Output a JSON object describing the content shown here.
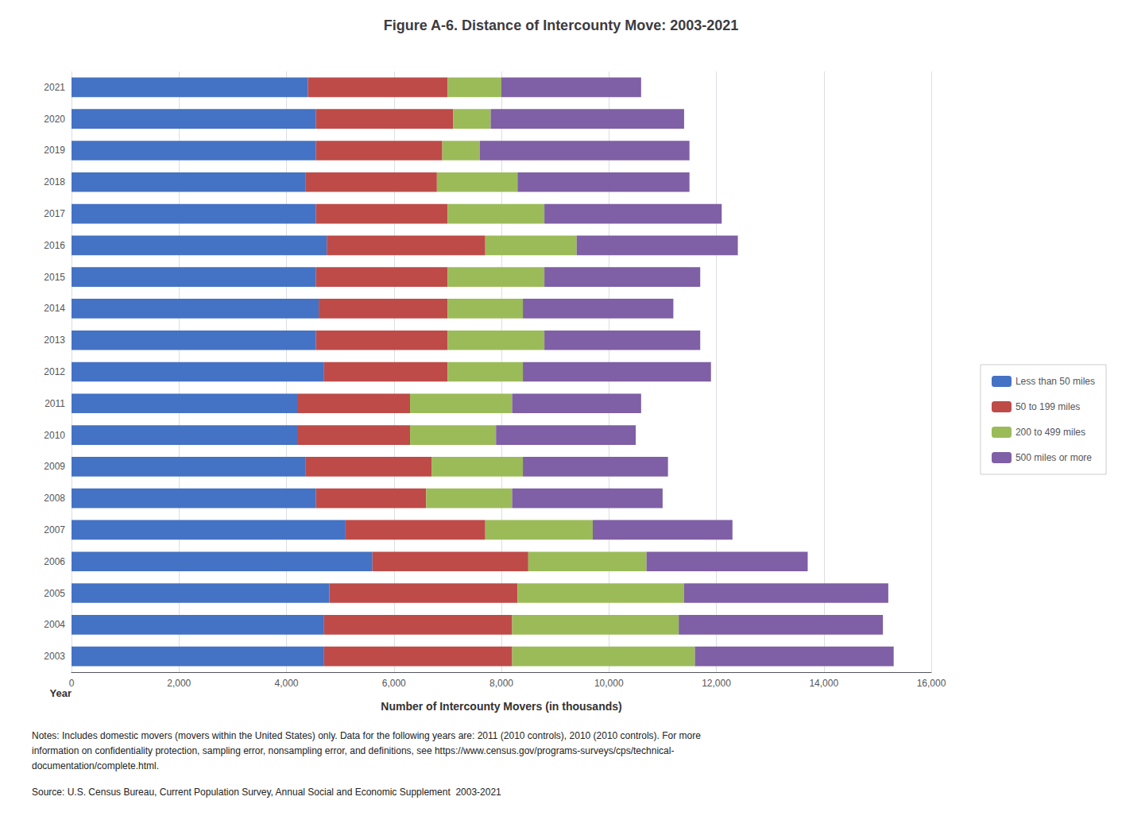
{
  "chart_data": {
    "type": "bar",
    "orientation": "horizontal",
    "stacked": true,
    "title": "Figure A-6. Distance of Intercounty Move: 2003-2021",
    "xlabel": "Number of Intercounty Movers (in thousands)",
    "ylabel": "Year",
    "categories": [
      "2021",
      "2020",
      "2019",
      "2018",
      "2017",
      "2016",
      "2015",
      "2014",
      "2013",
      "2012",
      "2011",
      "2010",
      "2009",
      "2008",
      "2007",
      "2006",
      "2005",
      "2004",
      "2003"
    ],
    "series": [
      {
        "name": "Less than 50 miles",
        "color": "#4472C4",
        "values": [
          4400,
          4550,
          4550,
          4350,
          4550,
          4750,
          4550,
          4600,
          4550,
          4700,
          4200,
          4200,
          4350,
          4550,
          5100,
          5600,
          4800,
          4700,
          4700
        ]
      },
      {
        "name": "50 to 199 miles",
        "color": "#BE4B48",
        "values": [
          2600,
          2550,
          2350,
          2450,
          2450,
          2950,
          2450,
          2400,
          2450,
          2300,
          2100,
          2100,
          2350,
          2050,
          2600,
          2900,
          3500,
          3500,
          3500
        ]
      },
      {
        "name": "200 to 499 miles",
        "color": "#9BBB59",
        "values": [
          1000,
          700,
          700,
          1500,
          1800,
          1700,
          1800,
          1400,
          1800,
          1400,
          1900,
          1600,
          1700,
          1600,
          2000,
          2200,
          3100,
          3100,
          3400
        ]
      },
      {
        "name": "500 miles or more",
        "color": "#7F5FA5",
        "values": [
          2600,
          3600,
          3900,
          3200,
          3300,
          3000,
          2900,
          2800,
          2900,
          3500,
          2400,
          2600,
          2700,
          2800,
          2600,
          3000,
          3800,
          3800,
          3700
        ]
      }
    ],
    "xlim": [
      0,
      16000
    ],
    "xticks": [
      0,
      {
        "value": 2000,
        "label": "2,000"
      },
      {
        "value": 4000,
        "label": "4,000"
      },
      {
        "value": 6000,
        "label": "6,000"
      },
      {
        "value": 8000,
        "label": "8,000"
      },
      {
        "value": 10000,
        "label": "10,000"
      },
      {
        "value": 12000,
        "label": "12,000"
      },
      {
        "value": 14000,
        "label": "14,000"
      },
      {
        "value": 16000,
        "label": "16,000"
      }
    ],
    "grid": true,
    "legend": "right",
    "annotations": [
      "Notes: Includes domestic movers (movers within the United States) only. Data for the following years are: 2011 (2010 controls), 2010 (2010 controls). For more",
      "information on confidentiality protection, sampling error, nonsampling error, and definitions, see https://www.census.gov/programs-surveys/cps/technical-",
      "documentation/complete.html.",
      "Source: U.S. Census Bureau, Current Population Survey, Annual Social and Economic Supplement  2003-2021"
    ]
  }
}
